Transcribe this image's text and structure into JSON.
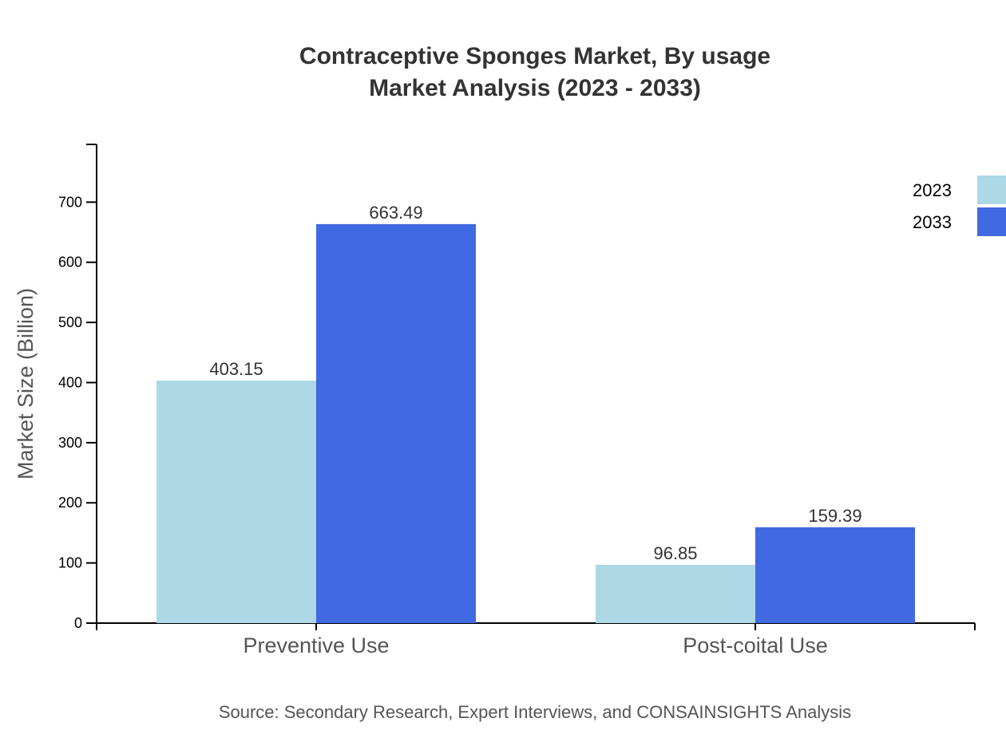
{
  "chart_data": {
    "type": "bar",
    "title_line1": "Contraceptive Sponges Market, By usage",
    "title_line2": "Market Analysis (2023 - 2033)",
    "xlabel": "",
    "ylabel": "Market Size (Billion)",
    "categories": [
      "Preventive Use",
      "Post-coital Use"
    ],
    "series": [
      {
        "name": "2023",
        "color": "#add8e6",
        "values": [
          403.15,
          96.85
        ]
      },
      {
        "name": "2033",
        "color": "#4169e1",
        "values": [
          663.49,
          159.39
        ]
      }
    ],
    "ylim": [
      0,
      796
    ],
    "yticks": [
      0,
      100,
      200,
      300,
      400,
      500,
      600,
      700
    ],
    "grid": false,
    "legend": "top-right",
    "source": "Source: Secondary Research, Expert Interviews, and CONSAINSIGHTS Analysis"
  }
}
